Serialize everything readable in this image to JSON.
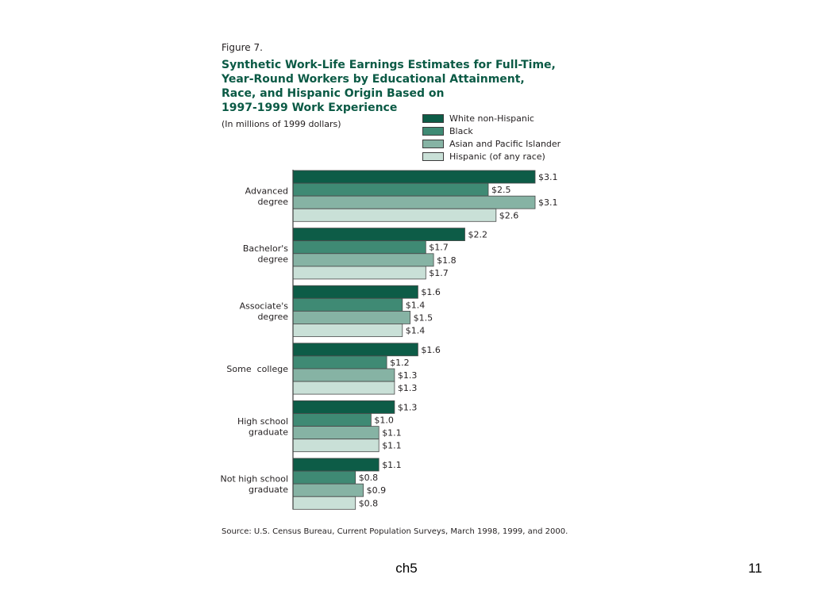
{
  "figure": {
    "label": "Figure 7.",
    "title_lines": [
      "Synthetic Work-Life Earnings Estimates for Full-Time,",
      "Year-Round Workers by Educational Attainment,",
      "Race, and Hispanic Origin Based on",
      "1997-1999 Work Experience"
    ],
    "units": "(In millions of 1999 dollars)",
    "source": "Source: U.S. Census Bureau, Current Population Surveys, March 1998, 1999, and 2000."
  },
  "colors": {
    "title": "#0b5a45",
    "axis": "#3c3c3c"
  },
  "chart_data": {
    "type": "bar",
    "orientation": "horizontal",
    "title": "Synthetic Work-Life Earnings Estimates for Full-Time, Year-Round Workers by Educational Attainment, Race, and Hispanic Origin Based on 1997-1999 Work Experience",
    "subtitle": "(In millions of 1999 dollars)",
    "categories": [
      [
        "Advanced",
        "degree"
      ],
      [
        "Bachelor's",
        "degree"
      ],
      [
        "Associate's",
        "degree"
      ],
      [
        "Some  college"
      ],
      [
        "High school",
        "graduate"
      ],
      [
        "Not high school",
        "graduate"
      ]
    ],
    "series": [
      {
        "name": "White non-Hispanic",
        "color": "#0d5c47",
        "values": [
          3.1,
          2.2,
          1.6,
          1.6,
          1.3,
          1.1
        ],
        "labels": [
          "$3.1",
          "$2.2",
          "$1.6",
          "$1.6",
          "$1.3",
          "$1.1"
        ]
      },
      {
        "name": "Black",
        "color": "#3f8a74",
        "values": [
          2.5,
          1.7,
          1.4,
          1.2,
          1.0,
          0.8
        ],
        "labels": [
          "$2.5",
          "$1.7",
          "$1.4",
          "$1.2",
          "$1.0",
          "$0.8"
        ]
      },
      {
        "name": "Asian and Pacific Islander",
        "color": "#86b3a4",
        "values": [
          3.1,
          1.8,
          1.5,
          1.3,
          1.1,
          0.9
        ],
        "labels": [
          "$3.1",
          "$1.8",
          "$1.5",
          "$1.3",
          "$1.1",
          "$0.9"
        ]
      },
      {
        "name": "Hispanic (of any race)",
        "color": "#c9e0d7",
        "values": [
          2.6,
          1.7,
          1.4,
          1.3,
          1.1,
          0.8
        ],
        "labels": [
          "$2.6",
          "$1.7",
          "$1.4",
          "$1.3",
          "$1.1",
          "$0.8"
        ]
      }
    ],
    "value_unit": "millions of 1999 dollars",
    "xlim": [
      0,
      3.5
    ],
    "grid": false,
    "legend_position": "top-right",
    "data_labels": "right of bars"
  },
  "slide": {
    "footer_text": "ch5",
    "page_number": "11"
  }
}
